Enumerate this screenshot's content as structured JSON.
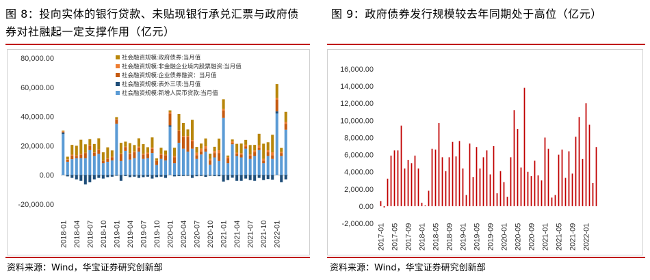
{
  "left_title": "图 8：投向实体的银行贷款、未贴现银行承兑汇票与政府债券对社融起一定支撑作用（亿元）",
  "right_title": "图 9：政府债券发行规模较去年同期处于高位（亿元）",
  "left_source": "资料来源：Wind，华宝证券研究创新部",
  "right_source": "资料来源：Wind，华宝证券研究创新部",
  "colors": {
    "rule": "#c00000",
    "gov": "#b8860b",
    "corp": "#c55a11",
    "wd": "#ed7d31",
    "off": "#1f4e79",
    "loan": "#5b9bd5",
    "bar2": "#c00000"
  },
  "chart_data": [
    {
      "type": "bar",
      "stacked": true,
      "ylim": [
        -20000,
        80000
      ],
      "yticks": [
        "80,000.00",
        "60,000.00",
        "40,000.00",
        "20,000.00",
        "0.00",
        "-20,000.00"
      ],
      "xticks": [
        "2018-01",
        "2018-04",
        "2018-07",
        "2018-10",
        "2019-01",
        "2019-04",
        "2019-07",
        "2019-10",
        "2020-01",
        "2020-04",
        "2020-07",
        "2020-10",
        "2021-01",
        "2021-04",
        "2021-07",
        "2021-10",
        "2022-01"
      ],
      "legend_position": "top-center",
      "series": [
        {
          "name": "社会融资规模:新增人民币贷款:当月值",
          "color": "#5b9bd5",
          "values": [
            28000,
            9000,
            10800,
            11500,
            11500,
            11500,
            17000,
            13000,
            14500,
            8000,
            9000,
            10000,
            35000,
            9500,
            16500,
            10500,
            11500,
            16000,
            11000,
            11500,
            15000,
            6800,
            11000,
            10000,
            33000,
            8000,
            22000,
            18000,
            16000,
            18000,
            11000,
            14000,
            16000,
            7000,
            12000,
            9500,
            39000,
            8000,
            21000,
            13000,
            12000,
            18000,
            11000,
            13000,
            17000,
            8000,
            13000,
            11000,
            42000,
            13000,
            31000
          ]
        },
        {
          "name": "社会融资规模:表外三项:当月值",
          "color": "#1f4e79",
          "values": [
            1000,
            -1000,
            -2000,
            -3000,
            -4000,
            -6500,
            -5000,
            -3000,
            -2000,
            -2500,
            -1500,
            -1200,
            -500,
            -4000,
            -800,
            -1500,
            -1200,
            -2000,
            -1500,
            -1200,
            -2500,
            -1500,
            -1200,
            -2000,
            1000,
            -1000,
            -800,
            -700,
            -600,
            -2000,
            -900,
            -700,
            -1300,
            -600,
            -800,
            -900,
            -4500,
            -3500,
            -1800,
            -4000,
            -4000,
            -2500,
            -3500,
            -4000,
            -2000,
            -3500,
            -2800,
            -3200,
            1500,
            -5000,
            -3000
          ]
        },
        {
          "name": "社会融资规模:企业债券融资：当月值",
          "color": "#c55a11",
          "values": [
            500,
            1500,
            2500,
            1500,
            2500,
            3500,
            3000,
            2200,
            2800,
            1500,
            2000,
            2000,
            3000,
            5000,
            2500,
            4000,
            4000,
            2500,
            3000,
            3000,
            3000,
            2800,
            3000,
            3500,
            8000,
            4000,
            8000,
            8000,
            10000,
            5000,
            2500,
            2000,
            2200,
            3000,
            3000,
            5500,
            5000,
            3500,
            1000,
            1500,
            2000,
            1500,
            2200,
            2500,
            1500,
            1800,
            2500,
            2500,
            8000,
            2000,
            4000
          ]
        },
        {
          "name": "社会融资规模:非金融企业境内股票融资:当月值",
          "color": "#ed7d31",
          "values": [
            400,
            200,
            600,
            400,
            400,
            300,
            400,
            300,
            300,
            200,
            300,
            400,
            300,
            200,
            400,
            400,
            600,
            900,
            600,
            800,
            700,
            300,
            500,
            400,
            1100,
            900,
            500,
            600,
            700,
            900,
            1700,
            2000,
            1500,
            1000,
            1300,
            1900,
            1100,
            800,
            1000,
            800,
            900,
            1200,
            900,
            1300,
            1600,
            1200,
            1400,
            2000,
            1200,
            800,
            1300
          ]
        },
        {
          "name": "社会融资规模:政府债券:当月值",
          "color": "#b8860b",
          "values": [
            400,
            1800,
            6700,
            6600,
            9700,
            5700,
            4100,
            5700,
            7500,
            5800,
            7600,
            4400,
            1300,
            7300,
            3400,
            6900,
            4400,
            5700,
            6500,
            3700,
            7000,
            1500,
            4100,
            2800,
            1100,
            5700,
            11200,
            9000,
            4500,
            13800,
            4000,
            3500,
            5300,
            3600,
            3000,
            8000,
            6700,
            1000,
            1300,
            6000,
            6600,
            3300,
            6400,
            3800,
            8100,
            10400,
            5500,
            12000,
            9500,
            2700,
            6900
          ]
        }
      ]
    },
    {
      "type": "bar",
      "ylim": [
        -2000,
        16000
      ],
      "yticks": [
        "16,000.00",
        "14,000.00",
        "12,000.00",
        "10,000.00",
        "8,000.00",
        "6,000.00",
        "4,000.00",
        "2,000.00",
        "0.00",
        "-2,000.00"
      ],
      "xticks": [
        "2017-01",
        "2017-05",
        "2017-09",
        "2018-01",
        "2018-05",
        "2018-09",
        "2019-01",
        "2019-05",
        "2019-09",
        "2020-01",
        "2020-05",
        "2020-09",
        "2021-01",
        "2021-05",
        "2021-09",
        "2022-01"
      ],
      "values": [
        600,
        -150,
        3200,
        5900,
        6500,
        6500,
        9400,
        4400,
        5400,
        5000,
        5900,
        4400,
        400,
        100,
        1800,
        6700,
        6600,
        9700,
        5700,
        4100,
        5700,
        7500,
        5800,
        7600,
        4400,
        1300,
        7300,
        3400,
        6900,
        4400,
        5700,
        6500,
        3700,
        7000,
        1500,
        4100,
        2800,
        1100,
        5700,
        11200,
        9000,
        4500,
        13800,
        4000,
        3500,
        5300,
        3600,
        3000,
        8000,
        6700,
        1000,
        1300,
        6000,
        6600,
        3300,
        6400,
        3800,
        8100,
        10400,
        5500,
        12000,
        9500,
        2700,
        6900
      ]
    }
  ]
}
